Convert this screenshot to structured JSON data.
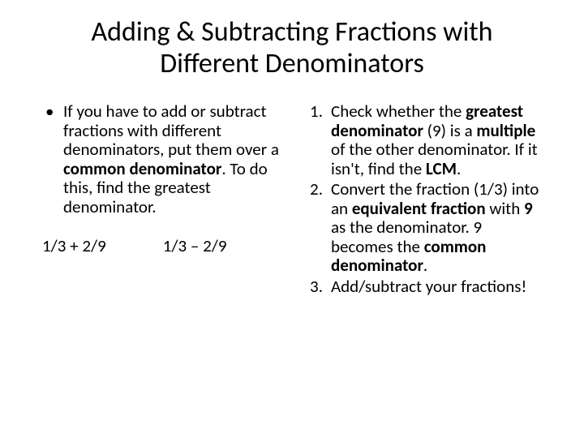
{
  "title": "Adding & Subtracting Fractions with Different Denominators",
  "left": {
    "bullet_marker": "•",
    "bullet_p1": "If you have to add or subtract fractions with different denominators, put them over a ",
    "bullet_bold1": "common denominator",
    "bullet_p2": ". To do this, find the greatest denominator.",
    "example1": "1/3 + 2/9",
    "example2": "1/3 – 2/9"
  },
  "right": {
    "items": [
      {
        "marker": "1.",
        "t1": "Check whether the ",
        "b1": "greatest denominator",
        "t2": " (9) is a ",
        "b2": "multiple",
        "t3": " of the other denominator. If it isn't, find the ",
        "b3": "LCM",
        "t4": "."
      },
      {
        "marker": "2.",
        "t1": "Convert the fraction (1/3) into an ",
        "b1": "equivalent fraction",
        "t2": " with ",
        "b2": "9",
        "t3": " as the denominator. 9 becomes the ",
        "b3": "common denominator",
        "t4": "."
      },
      {
        "marker": "3.",
        "t1": "Add/subtract your fractions!",
        "b1": "",
        "t2": "",
        "b2": "",
        "t3": "",
        "b3": "",
        "t4": ""
      }
    ]
  },
  "style": {
    "background_color": "#ffffff",
    "text_color": "#000000",
    "title_fontsize": 34,
    "body_fontsize": 21,
    "font_family": "Calibri"
  }
}
